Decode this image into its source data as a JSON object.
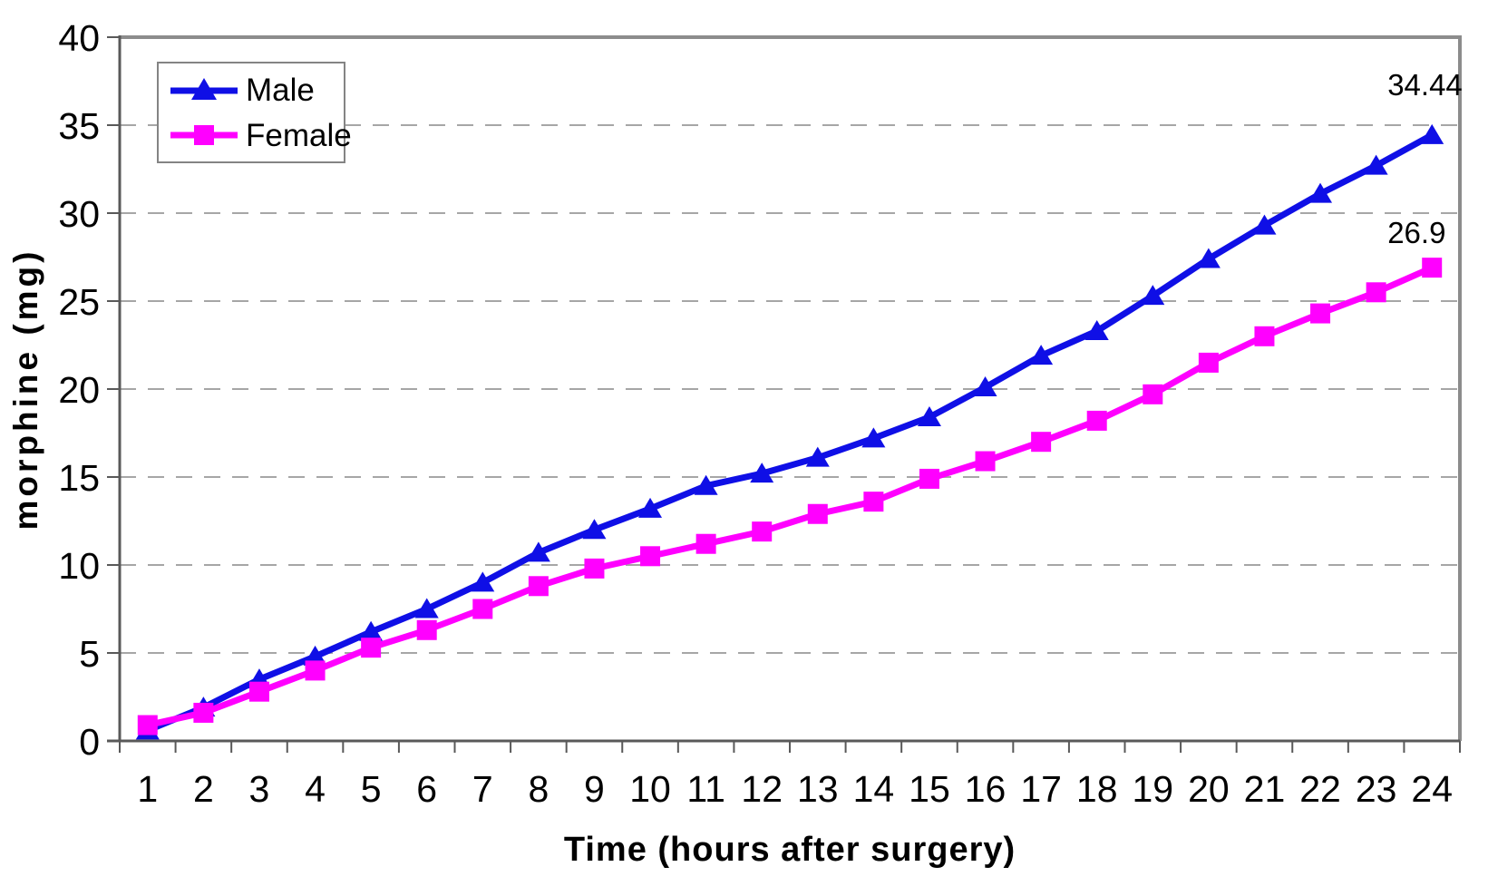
{
  "chart_data": {
    "type": "line",
    "title": "",
    "xlabel": "Time (hours after surgery)",
    "ylabel": "morphine (mg)",
    "categories": [
      1,
      2,
      3,
      4,
      5,
      6,
      7,
      8,
      9,
      10,
      11,
      12,
      13,
      14,
      15,
      16,
      17,
      18,
      19,
      20,
      21,
      22,
      23,
      24
    ],
    "ylim": [
      0,
      40
    ],
    "yticks": [
      0,
      5,
      10,
      15,
      20,
      25,
      30,
      35,
      40
    ],
    "grid": "horizontal-dashed",
    "legend_position": "top-left-inside",
    "series": [
      {
        "name": "Male",
        "marker": "triangle",
        "color": "#0f0fe6",
        "values": [
          0.6,
          1.9,
          3.5,
          4.8,
          6.2,
          7.5,
          9.0,
          10.7,
          12.0,
          13.2,
          14.5,
          15.2,
          16.1,
          17.2,
          18.4,
          20.1,
          21.9,
          23.3,
          25.3,
          27.4,
          29.3,
          31.1,
          32.7,
          34.44
        ],
        "end_label": "34.44"
      },
      {
        "name": "Female",
        "marker": "square",
        "color": "#ff00ff",
        "values": [
          0.9,
          1.6,
          2.8,
          4.0,
          5.3,
          6.3,
          7.5,
          8.8,
          9.8,
          10.5,
          11.2,
          11.9,
          12.9,
          13.6,
          14.9,
          15.9,
          17.0,
          18.2,
          19.7,
          21.5,
          23.0,
          24.3,
          25.5,
          26.9
        ],
        "end_label": "26.9"
      }
    ]
  },
  "colors": {
    "grid": "#a6a6a6",
    "frame": "#8c8c8c",
    "axis": "#595959",
    "text": "#000000",
    "legend_border": "#848484",
    "background": "#ffffff"
  }
}
